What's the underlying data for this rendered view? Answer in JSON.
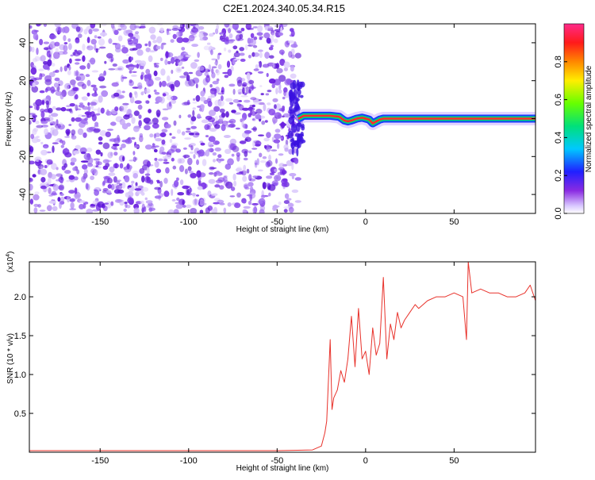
{
  "title": "C2E1.2024.340.05.34.R15",
  "colors": {
    "snr_line": "#e8312a",
    "spectro_scatter": "#6a1ee0",
    "spectro_light": "#d6c2ff",
    "track_outer": "#1a3cff",
    "track_mid": "#00d27a",
    "track_core": "#ff2a2a"
  },
  "chart_data": [
    {
      "id": "spectrogram",
      "type": "heatmap",
      "xlabel": "Height of straight line (km)",
      "ylabel": "Frequency (Hz)",
      "xlim": [
        -190,
        96
      ],
      "ylim": [
        -50,
        50
      ],
      "x_ticks": [
        -150,
        -100,
        -50,
        0,
        50
      ],
      "x_tick_labels": [
        "-150",
        "-100",
        "-50",
        "0",
        "50"
      ],
      "y_ticks": [
        -40,
        -20,
        0,
        20,
        40
      ],
      "y_tick_labels": [
        "-40",
        "-20",
        "0",
        "20",
        "40"
      ],
      "noise_region_x": [
        -190,
        -38
      ],
      "signal_track": {
        "x": [
          -38,
          -35,
          -30,
          -25,
          -20,
          -15,
          -12,
          -10,
          -8,
          -5,
          -2,
          0,
          2,
          4,
          6,
          8,
          10,
          15,
          20,
          30,
          40,
          50,
          60,
          70,
          80,
          90,
          96
        ],
        "frequency_hz": [
          0,
          1.5,
          1.5,
          1.5,
          1.5,
          1.0,
          -1.0,
          -1.5,
          -1.0,
          0,
          0.5,
          0,
          -0.5,
          -2.5,
          -1.5,
          -0.5,
          0,
          0,
          0,
          0,
          0,
          0,
          0,
          0,
          0,
          0,
          0
        ]
      },
      "colorbar": {
        "label": "Normalized spectral amplitude",
        "ticks": [
          0.0,
          0.2,
          0.4,
          0.6,
          0.8
        ],
        "tick_labels": [
          "0.0",
          "0.2",
          "0.4",
          "0.6",
          "0.8"
        ],
        "range": [
          0,
          1
        ]
      }
    },
    {
      "id": "snr",
      "type": "line",
      "xlabel": "Height of straight line (km)",
      "ylabel": "SNR (10 * v/v)",
      "y_multiplier_label": "(x10",
      "y_multiplier_exponent": "4",
      "y_multiplier_close": ")",
      "xlim": [
        -190,
        96
      ],
      "ylim": [
        0,
        2.45
      ],
      "x_ticks": [
        -150,
        -100,
        -50,
        0,
        50
      ],
      "x_tick_labels": [
        "-150",
        "-100",
        "-50",
        "0",
        "50"
      ],
      "y_ticks": [
        0.5,
        1.0,
        1.5,
        2.0
      ],
      "y_tick_labels": [
        "0.5",
        "1.0",
        "1.5",
        "2.0"
      ],
      "series": [
        {
          "x": [
            -190,
            -150,
            -100,
            -50,
            -30,
            -25,
            -23,
            -22,
            -20,
            -19,
            -18,
            -16,
            -14,
            -12,
            -10,
            -8,
            -6,
            -4,
            -2,
            0,
            2,
            4,
            6,
            8,
            10,
            12,
            14,
            16,
            18,
            20,
            22,
            25,
            28,
            30,
            35,
            40,
            45,
            50,
            55,
            57,
            58,
            60,
            65,
            70,
            75,
            80,
            85,
            90,
            93,
            96
          ],
          "y": [
            0.02,
            0.02,
            0.02,
            0.02,
            0.03,
            0.08,
            0.25,
            0.4,
            1.45,
            0.55,
            0.7,
            0.8,
            1.05,
            0.9,
            1.2,
            1.75,
            1.1,
            1.85,
            1.2,
            1.3,
            1.0,
            1.6,
            1.25,
            1.4,
            2.25,
            1.2,
            1.65,
            1.45,
            1.8,
            1.6,
            1.7,
            1.8,
            1.9,
            1.85,
            1.95,
            2.0,
            2.0,
            2.05,
            2.0,
            1.45,
            2.45,
            2.05,
            2.1,
            2.05,
            2.05,
            2.0,
            2.0,
            2.05,
            2.15,
            1.95
          ]
        }
      ]
    }
  ]
}
